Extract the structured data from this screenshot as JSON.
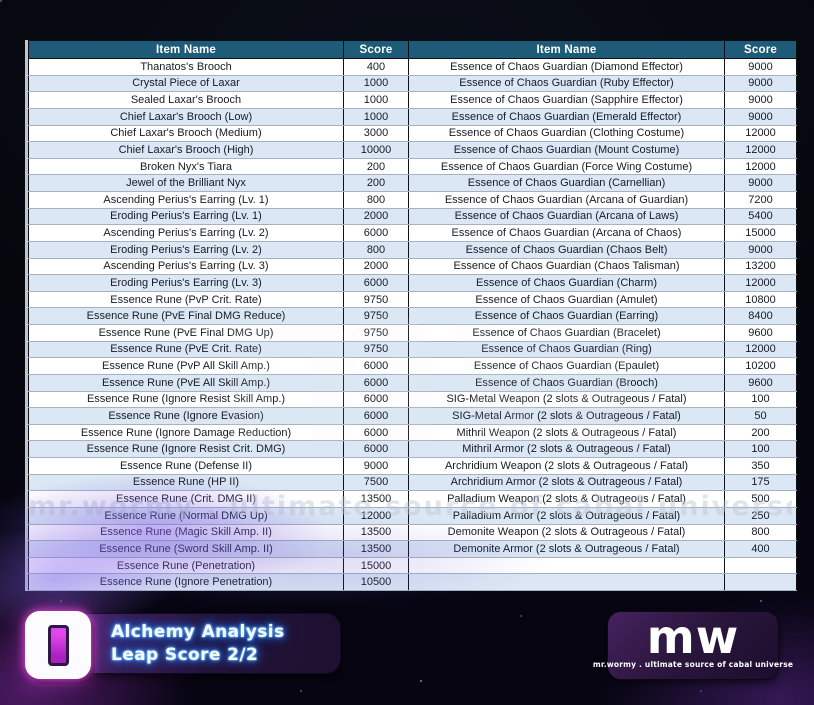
{
  "colors": {
    "header_bg": "#1d5b78",
    "row_alt_bg": "#dbe7f4",
    "accent_magenta": "#e245ea",
    "glow_blue": "#2f80ff"
  },
  "table": {
    "headers": [
      "Item Name",
      "Score",
      "Item Name",
      "Score"
    ],
    "rows": [
      [
        "Thanatos's Brooch",
        "400",
        "Essence of Chaos Guardian (Diamond Effector)",
        "9000"
      ],
      [
        "Crystal Piece of Laxar",
        "1000",
        "Essence of Chaos Guardian (Ruby Effector)",
        "9000"
      ],
      [
        "Sealed Laxar's Brooch",
        "1000",
        "Essence of Chaos Guardian (Sapphire Effector)",
        "9000"
      ],
      [
        "Chief Laxar's Brooch (Low)",
        "1000",
        "Essence of Chaos Guardian (Emerald Effector)",
        "9000"
      ],
      [
        "Chief Laxar's Brooch (Medium)",
        "3000",
        "Essence of Chaos Guardian (Clothing Costume)",
        "12000"
      ],
      [
        "Chief Laxar's Brooch (High)",
        "10000",
        "Essence of Chaos Guardian (Mount Costume)",
        "12000"
      ],
      [
        "Broken Nyx's Tiara",
        "200",
        "Essence of Chaos Guardian (Force Wing Costume)",
        "12000"
      ],
      [
        "Jewel of the Brilliant Nyx",
        "200",
        "Essence of Chaos Guardian (Carnellian)",
        "9000"
      ],
      [
        "Ascending Perius's Earring (Lv. 1)",
        "800",
        "Essence of Chaos Guardian (Arcana of Guardian)",
        "7200"
      ],
      [
        "Eroding Perius's Earring (Lv. 1)",
        "2000",
        "Essence of Chaos Guardian (Arcana of Laws)",
        "5400"
      ],
      [
        "Ascending Perius's Earring (Lv. 2)",
        "6000",
        "Essence of Chaos Guardian (Arcana of Chaos)",
        "15000"
      ],
      [
        "Eroding Perius's Earring (Lv. 2)",
        "800",
        "Essence of Chaos Guardian (Chaos Belt)",
        "9000"
      ],
      [
        "Ascending Perius's Earring (Lv. 3)",
        "2000",
        "Essence of Chaos Guardian (Chaos Talisman)",
        "13200"
      ],
      [
        "Eroding Perius's Earring (Lv. 3)",
        "6000",
        "Essence of Chaos Guardian (Charm)",
        "12000"
      ],
      [
        "Essence Rune (PvP Crit. Rate)",
        "9750",
        "Essence of Chaos Guardian (Amulet)",
        "10800"
      ],
      [
        "Essence Rune (PvE Final DMG Reduce)",
        "9750",
        "Essence of Chaos Guardian (Earring)",
        "8400"
      ],
      [
        "Essence Rune (PvE Final DMG Up)",
        "9750",
        "Essence of Chaos Guardian (Bracelet)",
        "9600"
      ],
      [
        "Essence Rune (PvE Crit. Rate)",
        "9750",
        "Essence of Chaos Guardian (Ring)",
        "12000"
      ],
      [
        "Essence Rune (PvP All Skill Amp.)",
        "6000",
        "Essence of Chaos Guardian (Epaulet)",
        "10200"
      ],
      [
        "Essence Rune (PvE All Skill Amp.)",
        "6000",
        "Essence of Chaos Guardian (Brooch)",
        "9600"
      ],
      [
        "Essence Rune (Ignore Resist Skill Amp.)",
        "6000",
        "SIG-Metal Weapon (2 slots & Outrageous / Fatal)",
        "100"
      ],
      [
        "Essence Rune (Ignore Evasion)",
        "6000",
        "SIG-Metal Armor (2 slots & Outrageous / Fatal)",
        "50"
      ],
      [
        "Essence Rune (Ignore Damage Reduction)",
        "6000",
        "Mithril Weapon (2 slots & Outrageous / Fatal)",
        "200"
      ],
      [
        "Essence Rune (Ignore Resist Crit. DMG)",
        "6000",
        "Mithril Armor (2 slots & Outrageous / Fatal)",
        "100"
      ],
      [
        "Essence Rune (Defense II)",
        "9000",
        "Archridium Weapon (2 slots & Outrageous / Fatal)",
        "350"
      ],
      [
        "Essence Rune (HP II)",
        "7500",
        "Archridium Armor (2 slots & Outrageous / Fatal)",
        "175"
      ],
      [
        "Essence Rune (Crit. DMG II)",
        "13500",
        "Palladium Weapon (2 slots & Outrageous / Fatal)",
        "500"
      ],
      [
        "Essence Rune (Normal DMG Up)",
        "12000",
        "Palladium Armor (2 slots & Outrageous / Fatal)",
        "250"
      ],
      [
        "Essence Rune (Magic Skill Amp. II)",
        "13500",
        "Demonite Weapon (2 slots & Outrageous / Fatal)",
        "800"
      ],
      [
        "Essence Rune (Sword Skill Amp. II)",
        "13500",
        "Demonite Armor (2 slots & Outrageous / Fatal)",
        "400"
      ],
      [
        "Essence Rune (Penetration)",
        "15000",
        "",
        ""
      ],
      [
        "Essence Rune (Ignore Penetration)",
        "10500",
        "",
        ""
      ]
    ]
  },
  "footer": {
    "badge": {
      "line1": "Alchemy Analysis",
      "line2": "Leap Score 2/2"
    },
    "logo": {
      "text": "mw",
      "tagline": "mr.wormy . ultimate source of cabal universe"
    }
  },
  "watermark": {
    "big": "mw",
    "line": "mr.wormy . ultimate source of cabal universe"
  }
}
